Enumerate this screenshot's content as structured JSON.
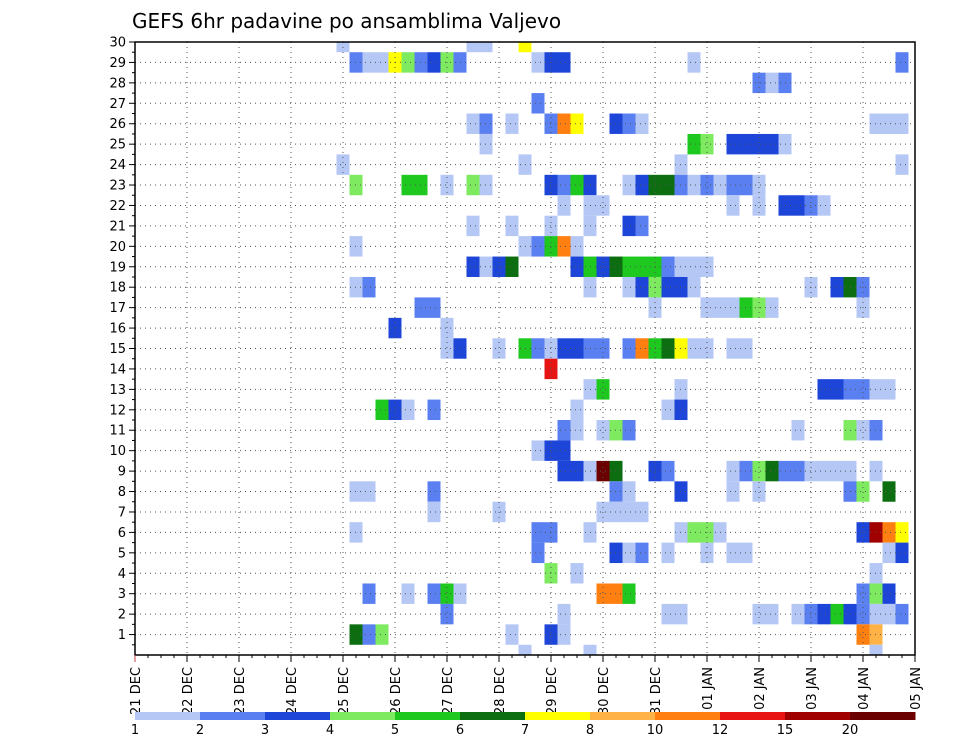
{
  "chart_data": {
    "type": "heatmap",
    "title": "GEFS 6hr padavine po ansamblima Valjevo",
    "x_tick_labels": [
      "21 DEC",
      "22 DEC",
      "23 DEC",
      "24 DEC",
      "25 DEC",
      "26 DEC",
      "27 DEC",
      "28 DEC",
      "29 DEC",
      "30 DEC",
      "31 DEC",
      "01 JAN",
      "02 JAN",
      "03 JAN",
      "04 JAN",
      "05 JAN"
    ],
    "y_tick_labels": [
      "1",
      "2",
      "3",
      "4",
      "5",
      "6",
      "7",
      "8",
      "9",
      "10",
      "11",
      "12",
      "13",
      "14",
      "15",
      "16",
      "17",
      "18",
      "19",
      "20",
      "21",
      "22",
      "23",
      "24",
      "25",
      "26",
      "27",
      "28",
      "29",
      "30"
    ],
    "xlim": [
      0,
      15
    ],
    "ylim": [
      0,
      30
    ],
    "grid": true,
    "legend": {
      "placement": "bottom",
      "labels": [
        "1",
        "2",
        "3",
        "4",
        "5",
        "6",
        "7",
        "8",
        "10",
        "12",
        "15",
        "20"
      ],
      "colors": [
        "#b4c7f5",
        "#5a7ff0",
        "#1d45d8",
        "#7dea60",
        "#1ec81e",
        "#0c6e10",
        "#ffff00",
        "#ffb347",
        "#ff8010",
        "#e81414",
        "#a00000",
        "#6b0000"
      ]
    },
    "cells": [
      [
        30,
        4.0,
        1
      ],
      [
        30,
        6.5,
        1
      ],
      [
        30,
        6.75,
        1
      ],
      [
        30,
        7.5,
        7
      ],
      [
        29,
        4.25,
        2
      ],
      [
        29,
        4.5,
        1
      ],
      [
        29,
        4.75,
        1
      ],
      [
        29,
        5.0,
        7
      ],
      [
        29,
        5.25,
        4
      ],
      [
        29,
        5.5,
        2
      ],
      [
        29,
        5.75,
        3
      ],
      [
        29,
        6.0,
        4
      ],
      [
        29,
        6.25,
        2
      ],
      [
        29,
        7.75,
        1
      ],
      [
        29,
        8.0,
        3
      ],
      [
        29,
        8.25,
        3
      ],
      [
        29,
        10.75,
        1
      ],
      [
        29,
        14.75,
        2
      ],
      [
        28,
        12.0,
        2
      ],
      [
        28,
        12.25,
        1
      ],
      [
        28,
        12.5,
        2
      ],
      [
        27,
        7.75,
        2
      ],
      [
        26,
        6.5,
        1
      ],
      [
        26,
        6.75,
        2
      ],
      [
        26,
        7.25,
        1
      ],
      [
        26,
        8.0,
        2
      ],
      [
        26,
        8.25,
        9
      ],
      [
        26,
        8.5,
        7
      ],
      [
        26,
        9.25,
        3
      ],
      [
        26,
        9.5,
        2
      ],
      [
        26,
        9.75,
        1
      ],
      [
        26,
        14.25,
        1
      ],
      [
        26,
        14.5,
        1
      ],
      [
        26,
        14.75,
        1
      ],
      [
        25,
        6.75,
        1
      ],
      [
        25,
        10.75,
        5
      ],
      [
        25,
        11.0,
        4
      ],
      [
        25,
        11.5,
        3
      ],
      [
        25,
        11.75,
        3
      ],
      [
        25,
        12.0,
        3
      ],
      [
        25,
        12.25,
        3
      ],
      [
        25,
        12.5,
        1
      ],
      [
        24,
        4.0,
        1
      ],
      [
        24,
        7.5,
        1
      ],
      [
        24,
        10.5,
        1
      ],
      [
        24,
        14.75,
        1
      ],
      [
        23,
        4.25,
        4
      ],
      [
        23,
        5.25,
        5
      ],
      [
        23,
        5.5,
        5
      ],
      [
        23,
        6.0,
        1
      ],
      [
        23,
        6.5,
        4
      ],
      [
        23,
        6.75,
        1
      ],
      [
        23,
        8.0,
        3
      ],
      [
        23,
        8.25,
        2
      ],
      [
        23,
        8.5,
        5
      ],
      [
        23,
        8.75,
        3
      ],
      [
        23,
        9.5,
        1
      ],
      [
        23,
        9.75,
        3
      ],
      [
        23,
        10.0,
        6
      ],
      [
        23,
        10.25,
        6
      ],
      [
        23,
        10.5,
        2
      ],
      [
        23,
        10.75,
        1
      ],
      [
        23,
        11.0,
        2
      ],
      [
        23,
        11.25,
        1
      ],
      [
        23,
        11.5,
        2
      ],
      [
        23,
        11.75,
        2
      ],
      [
        23,
        12.0,
        1
      ],
      [
        22,
        8.25,
        1
      ],
      [
        22,
        8.75,
        1
      ],
      [
        22,
        9.0,
        1
      ],
      [
        22,
        11.5,
        1
      ],
      [
        22,
        12.0,
        1
      ],
      [
        22,
        12.5,
        3
      ],
      [
        22,
        12.75,
        3
      ],
      [
        22,
        13.0,
        2
      ],
      [
        22,
        13.25,
        1
      ],
      [
        21,
        6.5,
        1
      ],
      [
        21,
        7.25,
        1
      ],
      [
        21,
        8.0,
        1
      ],
      [
        21,
        8.75,
        1
      ],
      [
        21,
        9.5,
        3
      ],
      [
        21,
        9.75,
        2
      ],
      [
        20,
        4.25,
        1
      ],
      [
        20,
        7.5,
        1
      ],
      [
        20,
        7.75,
        2
      ],
      [
        20,
        8.0,
        5
      ],
      [
        20,
        8.25,
        9
      ],
      [
        20,
        8.5,
        1
      ],
      [
        19,
        6.5,
        3
      ],
      [
        19,
        6.75,
        1
      ],
      [
        19,
        7.0,
        3
      ],
      [
        19,
        7.25,
        6
      ],
      [
        19,
        8.5,
        3
      ],
      [
        19,
        8.75,
        5
      ],
      [
        19,
        9.0,
        3
      ],
      [
        19,
        9.25,
        6
      ],
      [
        19,
        9.5,
        5
      ],
      [
        19,
        9.75,
        5
      ],
      [
        19,
        10.0,
        5
      ],
      [
        19,
        10.25,
        2
      ],
      [
        19,
        10.5,
        1
      ],
      [
        19,
        10.75,
        1
      ],
      [
        19,
        11.0,
        1
      ],
      [
        18,
        4.25,
        1
      ],
      [
        18,
        4.5,
        2
      ],
      [
        18,
        8.75,
        1
      ],
      [
        18,
        9.5,
        1
      ],
      [
        18,
        9.75,
        3
      ],
      [
        18,
        10.0,
        4
      ],
      [
        18,
        10.25,
        3
      ],
      [
        18,
        10.5,
        3
      ],
      [
        18,
        10.75,
        1
      ],
      [
        18,
        13.0,
        1
      ],
      [
        18,
        13.5,
        3
      ],
      [
        18,
        13.75,
        6
      ],
      [
        18,
        14.0,
        2
      ],
      [
        17,
        5.5,
        2
      ],
      [
        17,
        5.75,
        2
      ],
      [
        17,
        10.0,
        1
      ],
      [
        17,
        11.0,
        1
      ],
      [
        17,
        11.25,
        1
      ],
      [
        17,
        11.5,
        1
      ],
      [
        17,
        11.75,
        5
      ],
      [
        17,
        12.0,
        4
      ],
      [
        17,
        12.25,
        1
      ],
      [
        17,
        14.0,
        1
      ],
      [
        16,
        5.0,
        3
      ],
      [
        16,
        6.0,
        1
      ],
      [
        15,
        6.0,
        1
      ],
      [
        15,
        6.25,
        3
      ],
      [
        15,
        7.0,
        1
      ],
      [
        15,
        7.5,
        5
      ],
      [
        15,
        7.75,
        2
      ],
      [
        15,
        8.0,
        1
      ],
      [
        15,
        8.25,
        3
      ],
      [
        15,
        8.5,
        3
      ],
      [
        15,
        8.75,
        2
      ],
      [
        15,
        9.0,
        2
      ],
      [
        15,
        9.5,
        2
      ],
      [
        15,
        9.75,
        9
      ],
      [
        15,
        10.0,
        5
      ],
      [
        15,
        10.25,
        6
      ],
      [
        15,
        10.5,
        7
      ],
      [
        15,
        10.75,
        1
      ],
      [
        15,
        11.0,
        1
      ],
      [
        15,
        11.5,
        1
      ],
      [
        15,
        11.75,
        1
      ],
      [
        14,
        8.0,
        10
      ],
      [
        13,
        8.75,
        1
      ],
      [
        13,
        9.0,
        5
      ],
      [
        13,
        10.5,
        1
      ],
      [
        13,
        13.25,
        3
      ],
      [
        13,
        13.5,
        3
      ],
      [
        13,
        13.75,
        2
      ],
      [
        13,
        14.0,
        2
      ],
      [
        13,
        14.25,
        1
      ],
      [
        13,
        14.5,
        1
      ],
      [
        12,
        4.75,
        5
      ],
      [
        12,
        5.0,
        3
      ],
      [
        12,
        5.25,
        1
      ],
      [
        12,
        5.75,
        2
      ],
      [
        12,
        8.5,
        1
      ],
      [
        12,
        10.25,
        1
      ],
      [
        12,
        10.5,
        3
      ],
      [
        11,
        8.25,
        2
      ],
      [
        11,
        8.5,
        1
      ],
      [
        11,
        9.0,
        1
      ],
      [
        11,
        9.25,
        4
      ],
      [
        11,
        9.5,
        2
      ],
      [
        11,
        12.75,
        1
      ],
      [
        11,
        13.75,
        4
      ],
      [
        11,
        14.0,
        1
      ],
      [
        11,
        14.25,
        2
      ],
      [
        10,
        7.75,
        1
      ],
      [
        10,
        8.0,
        3
      ],
      [
        10,
        8.25,
        3
      ],
      [
        9,
        8.25,
        3
      ],
      [
        9,
        8.5,
        3
      ],
      [
        9,
        8.75,
        1
      ],
      [
        9,
        9.0,
        12
      ],
      [
        9,
        9.25,
        6
      ],
      [
        9,
        10.0,
        3
      ],
      [
        9,
        10.25,
        2
      ],
      [
        9,
        11.5,
        1
      ],
      [
        9,
        11.75,
        2
      ],
      [
        9,
        12.0,
        4
      ],
      [
        9,
        12.25,
        6
      ],
      [
        9,
        12.5,
        2
      ],
      [
        9,
        12.75,
        2
      ],
      [
        9,
        13.0,
        1
      ],
      [
        9,
        13.25,
        1
      ],
      [
        9,
        13.5,
        1
      ],
      [
        9,
        13.75,
        1
      ],
      [
        9,
        14.25,
        1
      ],
      [
        8,
        4.25,
        1
      ],
      [
        8,
        4.5,
        1
      ],
      [
        8,
        5.75,
        2
      ],
      [
        8,
        9.25,
        2
      ],
      [
        8,
        9.5,
        1
      ],
      [
        8,
        10.5,
        3
      ],
      [
        8,
        11.5,
        1
      ],
      [
        8,
        12.0,
        1
      ],
      [
        8,
        13.75,
        2
      ],
      [
        8,
        14.0,
        4
      ],
      [
        8,
        14.5,
        6
      ],
      [
        7,
        5.75,
        1
      ],
      [
        7,
        7.0,
        1
      ],
      [
        7,
        9.0,
        1
      ],
      [
        7,
        9.25,
        1
      ],
      [
        7,
        9.5,
        1
      ],
      [
        7,
        9.75,
        1
      ],
      [
        6,
        4.25,
        1
      ],
      [
        6,
        7.75,
        2
      ],
      [
        6,
        8.0,
        2
      ],
      [
        6,
        8.75,
        1
      ],
      [
        6,
        10.5,
        1
      ],
      [
        6,
        10.75,
        4
      ],
      [
        6,
        11.0,
        4
      ],
      [
        6,
        11.25,
        1
      ],
      [
        6,
        14.0,
        3
      ],
      [
        6,
        14.25,
        11
      ],
      [
        6,
        14.5,
        9
      ],
      [
        6,
        14.75,
        7
      ],
      [
        5,
        7.75,
        2
      ],
      [
        5,
        9.25,
        3
      ],
      [
        5,
        9.5,
        1
      ],
      [
        5,
        9.75,
        2
      ],
      [
        5,
        10.25,
        1
      ],
      [
        5,
        11.0,
        1
      ],
      [
        5,
        11.5,
        1
      ],
      [
        5,
        11.75,
        1
      ],
      [
        5,
        14.5,
        1
      ],
      [
        5,
        14.75,
        3
      ],
      [
        4,
        8.0,
        4
      ],
      [
        4,
        8.5,
        1
      ],
      [
        4,
        14.25,
        1
      ],
      [
        3,
        4.5,
        2
      ],
      [
        3,
        5.25,
        1
      ],
      [
        3,
        5.75,
        2
      ],
      [
        3,
        6.0,
        5
      ],
      [
        3,
        6.25,
        1
      ],
      [
        3,
        9.0,
        9
      ],
      [
        3,
        9.25,
        9
      ],
      [
        3,
        9.5,
        5
      ],
      [
        3,
        14.0,
        2
      ],
      [
        3,
        14.25,
        4
      ],
      [
        3,
        14.5,
        3
      ],
      [
        2,
        6.0,
        2
      ],
      [
        2,
        8.25,
        1
      ],
      [
        2,
        10.25,
        1
      ],
      [
        2,
        10.5,
        1
      ],
      [
        2,
        12.0,
        1
      ],
      [
        2,
        12.25,
        1
      ],
      [
        2,
        12.75,
        1
      ],
      [
        2,
        13.0,
        2
      ],
      [
        2,
        13.25,
        3
      ],
      [
        2,
        13.5,
        5
      ],
      [
        2,
        13.75,
        3
      ],
      [
        2,
        14.0,
        2
      ],
      [
        2,
        14.25,
        1
      ],
      [
        2,
        14.5,
        1
      ],
      [
        2,
        14.75,
        2
      ],
      [
        1,
        4.25,
        6
      ],
      [
        1,
        4.5,
        2
      ],
      [
        1,
        4.75,
        4
      ],
      [
        1,
        7.25,
        1
      ],
      [
        1,
        8.0,
        3
      ],
      [
        1,
        8.25,
        1
      ],
      [
        1,
        14.0,
        9
      ],
      [
        1,
        14.25,
        8
      ],
      [
        0,
        7.5,
        1
      ],
      [
        0,
        8.75,
        1
      ],
      [
        0,
        14.25,
        1
      ]
    ]
  }
}
